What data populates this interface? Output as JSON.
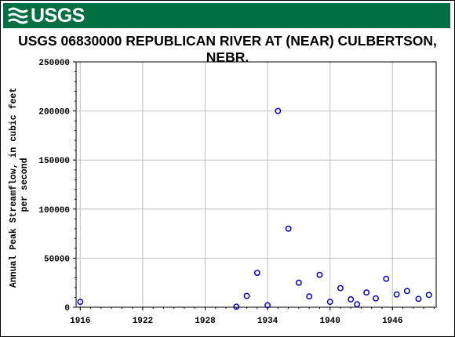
{
  "header": {
    "logo_text": "USGS",
    "logo_icon": "usgs-wave-icon",
    "banner_color": "#006f41"
  },
  "chart_data": {
    "type": "scatter",
    "title": "USGS 06830000 REPUBLICAN RIVER AT (NEAR) CULBERTSON, NEBR.",
    "ylabel_lines": [
      "Annual Peak Streamflow, in cubic feet",
      "per second"
    ],
    "xlabel": "",
    "xlim": [
      1915.6,
      1950.2
    ],
    "ylim": [
      0,
      250000
    ],
    "x_ticks": [
      "1916",
      "1922",
      "1928",
      "1934",
      "1940",
      "1946"
    ],
    "y_ticks": [
      "0",
      "50000",
      "100000",
      "150000",
      "200000",
      "250000"
    ],
    "grid": true,
    "marker_color": "#0000cc",
    "series": [
      {
        "points": [
          [
            1916,
            5500
          ],
          [
            1931,
            500
          ],
          [
            1932,
            11500
          ],
          [
            1933,
            35000
          ],
          [
            1934,
            2000
          ],
          [
            1935,
            200000
          ],
          [
            1936,
            80000
          ],
          [
            1937,
            25000
          ],
          [
            1938,
            11000
          ],
          [
            1939,
            33000
          ],
          [
            1940,
            5500
          ],
          [
            1941,
            19500
          ],
          [
            1942,
            8000
          ],
          [
            1942.6,
            3000
          ],
          [
            1943.5,
            15000
          ],
          [
            1944.4,
            9000
          ],
          [
            1945.4,
            29000
          ],
          [
            1946.4,
            13000
          ],
          [
            1947.4,
            16500
          ],
          [
            1948.5,
            8500
          ],
          [
            1949.5,
            12500
          ]
        ]
      }
    ]
  }
}
